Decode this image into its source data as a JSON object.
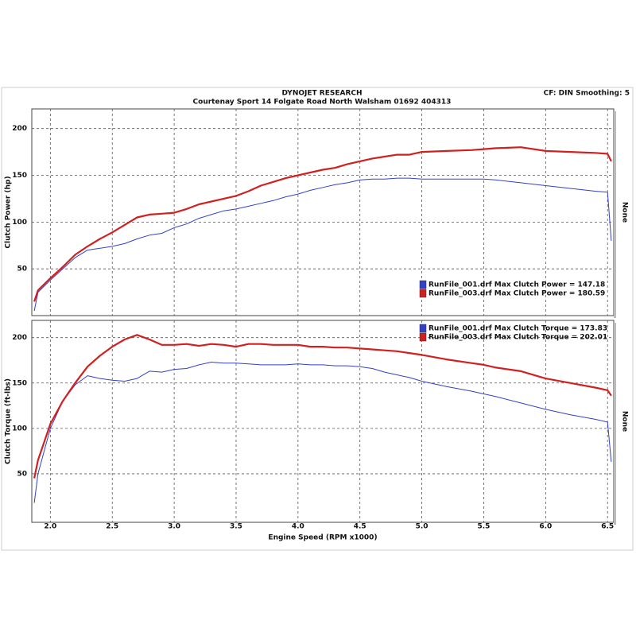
{
  "header": {
    "title": "DYNOJET RESEARCH",
    "subtitle": "Courtenay Sport 14 Folgate Road North Walsham 01692 404313",
    "settings": "CF: DIN  Smoothing: 5"
  },
  "chart_data": [
    {
      "type": "line",
      "y_label": "Clutch Power (hp)",
      "side_label": "None",
      "legend": "lower-right",
      "grid": true,
      "x": [
        1.87,
        1.9,
        2.0,
        2.1,
        2.2,
        2.3,
        2.4,
        2.5,
        2.6,
        2.7,
        2.8,
        2.9,
        3.0,
        3.1,
        3.2,
        3.3,
        3.4,
        3.5,
        3.6,
        3.7,
        3.8,
        3.9,
        4.0,
        4.1,
        4.2,
        4.3,
        4.4,
        4.5,
        4.6,
        4.7,
        4.8,
        4.9,
        5.0,
        5.2,
        5.4,
        5.5,
        5.6,
        5.8,
        6.0,
        6.2,
        6.4,
        6.5,
        6.53
      ],
      "xlim": [
        1.85,
        6.55
      ],
      "xticks": [
        2,
        2.5,
        3,
        3.5,
        4,
        4.5,
        5,
        5.5,
        6,
        6.5
      ],
      "ylim": [
        0,
        221
      ],
      "yticks": [
        50,
        100,
        150,
        200
      ],
      "series": [
        {
          "name": "RunFile_001.drf Max Clutch Power = 147.18",
          "color": "#3340c8",
          "values": [
            5,
            25,
            38,
            50,
            62,
            70,
            72,
            74,
            77,
            82,
            86,
            88,
            94,
            98,
            104,
            108,
            112,
            114,
            117,
            120,
            123,
            127,
            130,
            134,
            137,
            140,
            142,
            145,
            146,
            146,
            147,
            147,
            146,
            146,
            146,
            146,
            145,
            142,
            139,
            136,
            133,
            132,
            80
          ]
        },
        {
          "name": "RunFile_003.drf Max Clutch Power = 180.59",
          "color": "#d02020",
          "values": [
            15,
            27,
            40,
            52,
            65,
            74,
            82,
            89,
            97,
            105,
            108,
            109,
            110,
            114,
            119,
            122,
            125,
            128,
            133,
            139,
            143,
            147,
            150,
            153,
            156,
            158,
            162,
            165,
            168,
            170,
            172,
            172,
            175,
            176,
            177,
            178,
            179,
            180,
            176,
            175,
            174,
            173,
            165
          ]
        }
      ]
    },
    {
      "type": "line",
      "y_label": "Clutch Torque (ft-lbs)",
      "x_label": "Engine Speed (RPM x1000)",
      "side_label": "None",
      "legend": "upper-right",
      "grid": true,
      "x": [
        1.87,
        1.9,
        2.0,
        2.1,
        2.2,
        2.3,
        2.4,
        2.5,
        2.6,
        2.7,
        2.8,
        2.9,
        3.0,
        3.1,
        3.2,
        3.3,
        3.4,
        3.5,
        3.6,
        3.7,
        3.8,
        3.9,
        4.0,
        4.1,
        4.2,
        4.3,
        4.4,
        4.5,
        4.6,
        4.7,
        4.8,
        4.9,
        5.0,
        5.2,
        5.4,
        5.5,
        5.6,
        5.8,
        6.0,
        6.2,
        6.4,
        6.5,
        6.53
      ],
      "xlim": [
        1.85,
        6.55
      ],
      "xticks": [
        {
          "value": 2,
          "label": "2.0"
        },
        {
          "value": 2.5,
          "label": "2.5"
        },
        {
          "value": 3,
          "label": "3.0"
        },
        {
          "value": 3.5,
          "label": "3.5"
        },
        {
          "value": 4,
          "label": "4.0"
        },
        {
          "value": 4.5,
          "label": "4.5"
        },
        {
          "value": 5,
          "label": "5.0"
        },
        {
          "value": 5.5,
          "label": "5.5"
        },
        {
          "value": 6,
          "label": "6.0"
        },
        {
          "value": 6.5,
          "label": "6.5"
        }
      ],
      "ylim": [
        -3.5,
        219
      ],
      "yticks": [
        50,
        100,
        150,
        200
      ],
      "series": [
        {
          "name": "RunFile_001.drf Max Clutch Torque = 173.83",
          "color": "#3340c8",
          "values": [
            18,
            50,
            100,
            130,
            148,
            158,
            155,
            153,
            152,
            155,
            163,
            162,
            165,
            166,
            170,
            173,
            172,
            172,
            171,
            170,
            170,
            170,
            171,
            170,
            170,
            169,
            169,
            168,
            166,
            162,
            159,
            156,
            152,
            146,
            141,
            138,
            135,
            128,
            121,
            115,
            110,
            107,
            63
          ]
        },
        {
          "name": "RunFile_003.drf Max Clutch Torque = 202.01",
          "color": "#d02020",
          "values": [
            45,
            65,
            105,
            130,
            150,
            168,
            180,
            190,
            198,
            203,
            198,
            192,
            192,
            193,
            191,
            193,
            192,
            190,
            193,
            193,
            192,
            192,
            192,
            190,
            190,
            189,
            189,
            188,
            187,
            186,
            185,
            183,
            181,
            176,
            172,
            170,
            167,
            163,
            155,
            150,
            145,
            142,
            136
          ]
        }
      ]
    }
  ]
}
